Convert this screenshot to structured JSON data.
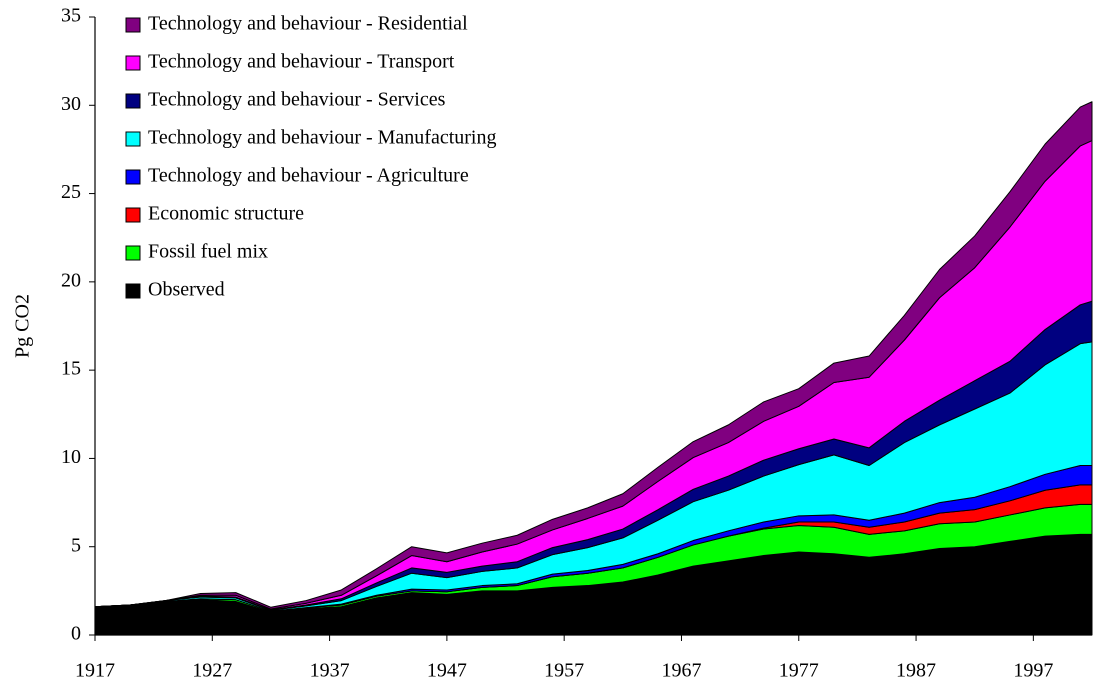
{
  "chart_data": {
    "type": "stacked_area",
    "y_label": "Pg CO2",
    "x": [
      1917,
      1920,
      1923,
      1926,
      1929,
      1932,
      1935,
      1938,
      1941,
      1944,
      1947,
      1950,
      1953,
      1956,
      1959,
      1962,
      1965,
      1968,
      1971,
      1974,
      1977,
      1980,
      1983,
      1986,
      1989,
      1992,
      1995,
      1998,
      2001,
      2002
    ],
    "xlim": [
      1917,
      2002
    ],
    "xticks": [
      1917,
      1927,
      1937,
      1947,
      1957,
      1967,
      1977,
      1987,
      1997
    ],
    "ylim": [
      0,
      35
    ],
    "yticks": [
      0,
      5,
      10,
      15,
      20,
      25,
      30,
      35
    ],
    "grid": false,
    "legend": "top-left",
    "series": [
      {
        "name": "Observed",
        "color": "#000000",
        "values": [
          1.6,
          1.7,
          1.9,
          2.0,
          1.9,
          1.3,
          1.5,
          1.6,
          2.1,
          2.4,
          2.3,
          2.5,
          2.5,
          2.7,
          2.8,
          3.0,
          3.4,
          3.9,
          4.2,
          4.5,
          4.7,
          4.6,
          4.4,
          4.6,
          4.9,
          5.0,
          5.3,
          5.6,
          5.7,
          5.7
        ]
      },
      {
        "name": "Fossil fuel mix",
        "color": "#00ff00",
        "values": [
          0,
          0,
          0,
          0.05,
          0.1,
          0.05,
          0.05,
          0.1,
          0.1,
          0.1,
          0.15,
          0.2,
          0.3,
          0.6,
          0.7,
          0.8,
          1.0,
          1.2,
          1.4,
          1.5,
          1.5,
          1.5,
          1.3,
          1.3,
          1.4,
          1.4,
          1.5,
          1.6,
          1.7,
          1.7
        ]
      },
      {
        "name": "Economic structure",
        "color": "#ff0000",
        "values": [
          0,
          0,
          0,
          0,
          0,
          0,
          0,
          0,
          0,
          0,
          0,
          0,
          0,
          0,
          0,
          0,
          0,
          0,
          0,
          0.05,
          0.2,
          0.3,
          0.4,
          0.5,
          0.6,
          0.7,
          0.8,
          1.0,
          1.1,
          1.1
        ]
      },
      {
        "name": "Technology and behaviour - Agriculture",
        "color": "#0000ff",
        "values": [
          0,
          0,
          0,
          0,
          0,
          0,
          0,
          0.05,
          0.05,
          0.1,
          0.1,
          0.1,
          0.1,
          0.15,
          0.15,
          0.2,
          0.2,
          0.25,
          0.3,
          0.35,
          0.35,
          0.4,
          0.4,
          0.5,
          0.6,
          0.7,
          0.8,
          0.9,
          1.1,
          1.1
        ]
      },
      {
        "name": "Technology and behaviour - Manufacturing",
        "color": "#00ffff",
        "values": [
          0,
          0,
          0.05,
          0.1,
          0.1,
          0.05,
          0.1,
          0.2,
          0.5,
          0.9,
          0.7,
          0.8,
          0.9,
          1.1,
          1.3,
          1.5,
          1.9,
          2.2,
          2.3,
          2.6,
          2.9,
          3.4,
          3.1,
          4.0,
          4.4,
          5.0,
          5.3,
          6.2,
          6.9,
          7.0
        ]
      },
      {
        "name": "Technology and behaviour - Services",
        "color": "#000080",
        "values": [
          0,
          0,
          0,
          0.05,
          0.05,
          0.02,
          0.05,
          0.1,
          0.2,
          0.3,
          0.3,
          0.3,
          0.35,
          0.4,
          0.45,
          0.5,
          0.6,
          0.7,
          0.8,
          0.9,
          0.9,
          0.9,
          1.0,
          1.2,
          1.4,
          1.6,
          1.8,
          2.0,
          2.2,
          2.3
        ]
      },
      {
        "name": "Technology and behaviour - Transport",
        "color": "#ff00ff",
        "values": [
          0,
          0,
          0,
          0.05,
          0.1,
          0.05,
          0.1,
          0.2,
          0.4,
          0.7,
          0.6,
          0.8,
          1.0,
          1.0,
          1.2,
          1.3,
          1.6,
          1.8,
          1.9,
          2.2,
          2.4,
          3.2,
          4.0,
          4.6,
          5.8,
          6.4,
          7.6,
          8.4,
          9.0,
          9.1
        ]
      },
      {
        "name": "Technology and behaviour - Residential",
        "color": "#800080",
        "values": [
          0,
          0,
          0,
          0.1,
          0.15,
          0.1,
          0.15,
          0.3,
          0.4,
          0.5,
          0.5,
          0.5,
          0.5,
          0.6,
          0.6,
          0.7,
          0.8,
          0.9,
          1.0,
          1.1,
          1.0,
          1.1,
          1.2,
          1.4,
          1.6,
          1.8,
          2.0,
          2.1,
          2.2,
          2.2
        ]
      }
    ]
  }
}
